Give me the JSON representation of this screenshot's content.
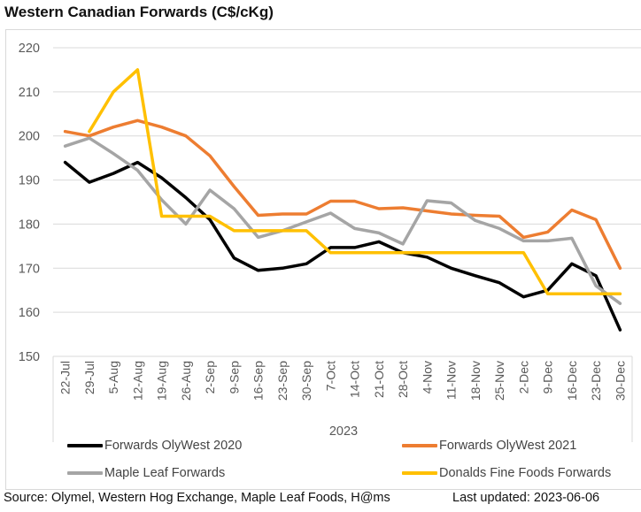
{
  "title": "Western Canadian Forwards (C$/cKg)",
  "footer": {
    "source": "Source: Olymel, Western Hog Exchange, Maple Leaf Foods, H@ms",
    "updated": "Last updated:  2023-06-06"
  },
  "chart_data": {
    "type": "line",
    "title": "Western Canadian Forwards (C$/cKg)",
    "xlabel": "2023",
    "ylabel": "",
    "ylim": [
      150,
      220
    ],
    "yticks": [
      150,
      160,
      170,
      180,
      190,
      200,
      210,
      220
    ],
    "grid": true,
    "legend_position": "bottom",
    "categories": [
      "22-Jul",
      "29-Jul",
      "5-Aug",
      "12-Aug",
      "19-Aug",
      "26-Aug",
      "2-Sep",
      "9-Sep",
      "16-Sep",
      "23-Sep",
      "30-Sep",
      "7-Oct",
      "14-Oct",
      "21-Oct",
      "28-Oct",
      "4-Nov",
      "11-Nov",
      "18-Nov",
      "25-Nov",
      "2-Dec",
      "9-Dec",
      "16-Dec",
      "23-Dec",
      "30-Dec"
    ],
    "series": [
      {
        "name": "Forwards OlyWest 2020",
        "color": "#000000",
        "values": [
          194,
          189.5,
          191.5,
          194,
          190.5,
          186,
          181,
          172.3,
          169.5,
          170,
          171,
          174.7,
          174.7,
          176,
          173.5,
          172.5,
          170,
          168.3,
          166.7,
          163.5,
          165,
          171,
          168.3,
          156
        ]
      },
      {
        "name": "Forwards OlyWest 2021",
        "color": "#ED7D31",
        "values": [
          201,
          200,
          202,
          203.5,
          202,
          200,
          195.5,
          188.5,
          182,
          182.3,
          182.3,
          185.2,
          185.2,
          183.5,
          183.7,
          183,
          182.3,
          182,
          181.8,
          177,
          178.2,
          183.2,
          181,
          170
        ]
      },
      {
        "name": "Maple Leaf Forwards",
        "color": "#A5A5A5",
        "values": [
          197.7,
          199.5,
          196,
          192.2,
          185.5,
          180,
          187.7,
          183.5,
          177,
          178.5,
          180.5,
          182.5,
          179,
          178,
          175.5,
          185.3,
          184.8,
          180.8,
          179,
          176.2,
          176.2,
          176.8,
          166,
          162
        ]
      },
      {
        "name": "Donalds Fine Foods Forwards",
        "color": "#FFC000",
        "values": [
          null,
          201,
          210,
          215,
          181.8,
          181.8,
          181.8,
          178.5,
          178.5,
          178.5,
          178.5,
          173.5,
          173.5,
          173.5,
          173.5,
          173.5,
          173.5,
          173.5,
          173.5,
          173.5,
          164.2,
          164.2,
          164.2,
          164.2
        ]
      }
    ]
  }
}
